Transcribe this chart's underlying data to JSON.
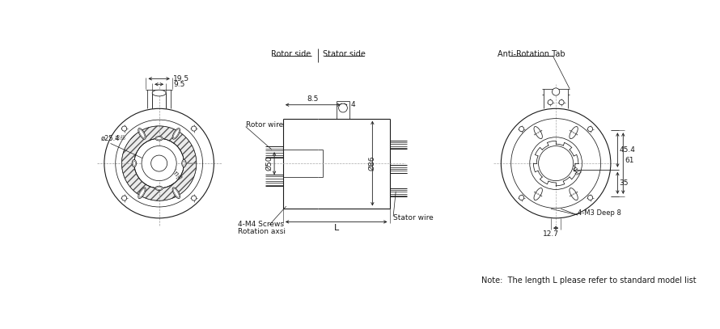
{
  "bg_color": "#ffffff",
  "lc": "#1a1a1a",
  "note_text": "Note:  The length L please refer to standard model list",
  "rotor_side": "Rotor side",
  "stator_side": "Stator side",
  "anti_rotation": "Anti-Rotation Tab",
  "rotor_wire": "Rotor wire",
  "stator_wire": "Stator wire",
  "screws": "4-M4 Screws",
  "rotation_axsi": "Rotation axsi",
  "m3_deep": "4-M3 Deep 8",
  "dim_195": "19.5",
  "dim_95": "9.5",
  "dim_85": "8.5",
  "dim_4": "4",
  "dim_50": "Ø50",
  "dim_86": "Ø86",
  "dim_L": "L",
  "dim_254": "Ø25.4",
  "dim_45": "45.4",
  "dim_61": "61",
  "dim_35": "35",
  "dim_127": "12.7"
}
